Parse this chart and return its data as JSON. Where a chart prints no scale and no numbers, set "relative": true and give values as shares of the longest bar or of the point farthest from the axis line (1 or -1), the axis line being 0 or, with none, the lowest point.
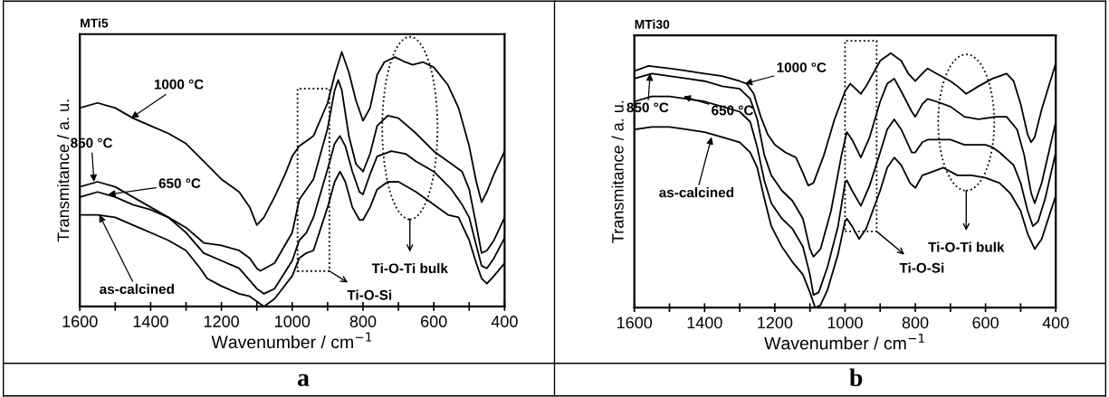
{
  "chart_data": [
    {
      "type": "line",
      "title": "MTi5",
      "xlabel": "Wavenumber / cm$^{−1}$",
      "ylabel": "Transmitance / a. u.",
      "relative": true,
      "xlim": [
        1600,
        400
      ],
      "xticks": [
        1600,
        {
          "value": 1500,
          "label": null
        },
        1400,
        {
          "value": 1300,
          "label": null
        },
        1200,
        {
          "value": 1100,
          "label": null
        },
        1000,
        {
          "value": 900,
          "label": null
        },
        800,
        {
          "value": 700,
          "label": null
        },
        600,
        {
          "value": 500,
          "label": null
        },
        400
      ],
      "series": [
        {
          "color": "#000000",
          "x": [
            1600,
            1550,
            1500,
            1450,
            1400,
            1350,
            1300,
            1250,
            1200,
            1150,
            1120,
            1100,
            1080,
            1050,
            1020,
            1000,
            980,
            960,
            940,
            900,
            880,
            860,
            840,
            820,
            800,
            780,
            760,
            740,
            710,
            680,
            660,
            630,
            600,
            560,
            530,
            500,
            480,
            465,
            450,
            430,
            400
          ],
          "values": [
            0.78,
            0.8,
            0.78,
            0.74,
            0.71,
            0.68,
            0.64,
            0.57,
            0.5,
            0.45,
            0.39,
            0.32,
            0.35,
            0.43,
            0.52,
            0.59,
            0.63,
            0.65,
            0.67,
            0.8,
            0.91,
            1.0,
            0.92,
            0.81,
            0.73,
            0.78,
            0.91,
            0.96,
            0.98,
            0.96,
            0.95,
            0.96,
            0.94,
            0.87,
            0.78,
            0.63,
            0.49,
            0.41,
            0.45,
            0.52,
            0.61
          ]
        },
        {
          "color": "#000000",
          "x": [
            1600,
            1550,
            1500,
            1450,
            1400,
            1350,
            1300,
            1250,
            1200,
            1150,
            1120,
            1100,
            1090,
            1050,
            1000,
            980,
            960,
            940,
            900,
            880,
            870,
            860,
            840,
            820,
            800,
            780,
            760,
            730,
            700,
            650,
            600,
            550,
            520,
            500,
            480,
            465,
            450,
            430,
            400
          ],
          "values": [
            0.47,
            0.49,
            0.47,
            0.43,
            0.39,
            0.35,
            0.31,
            0.25,
            0.24,
            0.22,
            0.19,
            0.15,
            0.14,
            0.17,
            0.29,
            0.42,
            0.46,
            0.5,
            0.7,
            0.85,
            0.89,
            0.85,
            0.67,
            0.56,
            0.53,
            0.6,
            0.71,
            0.75,
            0.74,
            0.68,
            0.61,
            0.56,
            0.53,
            0.46,
            0.32,
            0.21,
            0.22,
            0.26,
            0.35
          ]
        },
        {
          "color": "#000000",
          "x": [
            1600,
            1550,
            1500,
            1450,
            1400,
            1350,
            1300,
            1250,
            1200,
            1150,
            1100,
            1080,
            1050,
            1000,
            980,
            960,
            940,
            900,
            880,
            865,
            850,
            830,
            810,
            800,
            780,
            760,
            720,
            680,
            650,
            600,
            550,
            520,
            500,
            480,
            465,
            450,
            430,
            400
          ],
          "values": [
            0.43,
            0.45,
            0.43,
            0.4,
            0.38,
            0.35,
            0.29,
            0.21,
            0.18,
            0.15,
            0.07,
            0.05,
            0.07,
            0.18,
            0.26,
            0.29,
            0.35,
            0.54,
            0.64,
            0.67,
            0.63,
            0.53,
            0.45,
            0.44,
            0.52,
            0.59,
            0.61,
            0.6,
            0.57,
            0.53,
            0.46,
            0.4,
            0.35,
            0.24,
            0.16,
            0.15,
            0.19,
            0.27
          ]
        },
        {
          "color": "#000000",
          "x": [
            1600,
            1550,
            1500,
            1450,
            1400,
            1350,
            1300,
            1260,
            1240,
            1200,
            1150,
            1120,
            1080,
            1050,
            1000,
            980,
            960,
            940,
            900,
            880,
            865,
            850,
            830,
            810,
            800,
            780,
            760,
            730,
            700,
            650,
            600,
            560,
            530,
            500,
            480,
            465,
            450,
            430,
            400
          ],
          "values": [
            0.36,
            0.36,
            0.35,
            0.32,
            0.29,
            0.26,
            0.22,
            0.15,
            0.11,
            0.08,
            0.05,
            0.04,
            0.0,
            0.03,
            0.12,
            0.19,
            0.21,
            0.22,
            0.39,
            0.49,
            0.53,
            0.49,
            0.39,
            0.34,
            0.34,
            0.39,
            0.46,
            0.49,
            0.49,
            0.45,
            0.4,
            0.36,
            0.35,
            0.26,
            0.17,
            0.11,
            0.09,
            0.12,
            0.17
          ]
        }
      ],
      "annotations": [
        {
          "text": "1000 °C",
          "x": 1455,
          "y": 0.74
        },
        {
          "text": "850 °C",
          "x": 1560,
          "y": 0.49
        },
        {
          "text": "650 °C",
          "x": 1520,
          "y": 0.44
        },
        {
          "text": "as-calcined",
          "x": 1545,
          "y": 0.36
        },
        "Ti-O-Si",
        "Ti-O-Ti bulk",
        "a"
      ]
    },
    {
      "type": "line",
      "title": "MTi30",
      "xlabel": "Wavenumber / cm$^{−1}$",
      "ylabel": "Transmitance / a. u.",
      "relative": true,
      "xlim": [
        1600,
        400
      ],
      "xticks": [
        1600,
        {
          "value": 1500,
          "label": null
        },
        1400,
        {
          "value": 1300,
          "label": null
        },
        1200,
        {
          "value": 1100,
          "label": null
        },
        1000,
        {
          "value": 900,
          "label": null
        },
        800,
        {
          "value": 700,
          "label": null
        },
        600,
        {
          "value": 500,
          "label": null
        },
        400
      ],
      "series": [
        {
          "color": "#000000",
          "x": [
            1600,
            1560,
            1500,
            1450,
            1400,
            1350,
            1300,
            1280,
            1260,
            1240,
            1220,
            1200,
            1170,
            1140,
            1120,
            1105,
            1090,
            1060,
            1030,
            1000,
            985,
            970,
            955,
            940,
            920,
            900,
            870,
            840,
            820,
            800,
            780,
            765,
            740,
            700,
            680,
            655,
            620,
            580,
            540,
            520,
            500,
            480,
            470,
            460,
            440,
            400
          ],
          "values": [
            0.93,
            0.95,
            0.94,
            0.93,
            0.92,
            0.91,
            0.89,
            0.88,
            0.84,
            0.75,
            0.68,
            0.64,
            0.61,
            0.59,
            0.53,
            0.48,
            0.49,
            0.6,
            0.74,
            0.85,
            0.88,
            0.86,
            0.84,
            0.87,
            0.92,
            0.97,
            1.0,
            0.97,
            0.92,
            0.89,
            0.92,
            0.94,
            0.92,
            0.89,
            0.87,
            0.84,
            0.87,
            0.9,
            0.92,
            0.89,
            0.8,
            0.68,
            0.65,
            0.67,
            0.78,
            0.96
          ]
        },
        {
          "color": "#000000",
          "x": [
            1600,
            1550,
            1500,
            1450,
            1400,
            1350,
            1300,
            1270,
            1250,
            1230,
            1210,
            1180,
            1150,
            1120,
            1100,
            1090,
            1070,
            1040,
            1010,
            995,
            980,
            955,
            930,
            900,
            880,
            860,
            840,
            810,
            800,
            780,
            765,
            740,
            700,
            660,
            620,
            570,
            540,
            510,
            490,
            470,
            460,
            440,
            400
          ],
          "values": [
            0.9,
            0.92,
            0.91,
            0.9,
            0.89,
            0.87,
            0.86,
            0.82,
            0.74,
            0.6,
            0.52,
            0.46,
            0.42,
            0.35,
            0.23,
            0.2,
            0.23,
            0.38,
            0.6,
            0.69,
            0.66,
            0.59,
            0.67,
            0.81,
            0.88,
            0.9,
            0.85,
            0.77,
            0.75,
            0.8,
            0.82,
            0.81,
            0.79,
            0.75,
            0.74,
            0.75,
            0.75,
            0.7,
            0.6,
            0.45,
            0.41,
            0.49,
            0.73
          ]
        },
        {
          "color": "#000000",
          "x": [
            1600,
            1550,
            1500,
            1450,
            1400,
            1350,
            1300,
            1270,
            1250,
            1230,
            1210,
            1180,
            1150,
            1120,
            1100,
            1090,
            1075,
            1050,
            1020,
            1000,
            995,
            980,
            955,
            930,
            900,
            880,
            860,
            840,
            810,
            800,
            780,
            765,
            740,
            700,
            660,
            600,
            580,
            560,
            520,
            500,
            480,
            465,
            450,
            430,
            400
          ],
          "values": [
            0.81,
            0.83,
            0.83,
            0.82,
            0.81,
            0.79,
            0.77,
            0.73,
            0.63,
            0.5,
            0.41,
            0.35,
            0.31,
            0.24,
            0.13,
            0.05,
            0.06,
            0.16,
            0.32,
            0.49,
            0.5,
            0.46,
            0.4,
            0.48,
            0.61,
            0.7,
            0.74,
            0.7,
            0.61,
            0.61,
            0.65,
            0.66,
            0.66,
            0.66,
            0.64,
            0.64,
            0.63,
            0.61,
            0.56,
            0.49,
            0.38,
            0.32,
            0.34,
            0.43,
            0.61
          ]
        },
        {
          "color": "#000000",
          "x": [
            1600,
            1550,
            1500,
            1450,
            1400,
            1350,
            1300,
            1270,
            1250,
            1230,
            1210,
            1180,
            1150,
            1120,
            1100,
            1085,
            1070,
            1050,
            1020,
            1000,
            995,
            980,
            960,
            940,
            900,
            880,
            860,
            840,
            815,
            800,
            780,
            760,
            720,
            680,
            640,
            600,
            560,
            530,
            500,
            480,
            460,
            440,
            400
          ],
          "values": [
            0.7,
            0.71,
            0.71,
            0.7,
            0.69,
            0.67,
            0.65,
            0.61,
            0.55,
            0.43,
            0.32,
            0.24,
            0.18,
            0.13,
            0.06,
            0.0,
            0.01,
            0.07,
            0.21,
            0.34,
            0.35,
            0.32,
            0.27,
            0.31,
            0.46,
            0.55,
            0.59,
            0.56,
            0.49,
            0.47,
            0.52,
            0.53,
            0.55,
            0.52,
            0.52,
            0.51,
            0.49,
            0.45,
            0.38,
            0.29,
            0.23,
            0.27,
            0.44
          ]
        }
      ],
      "annotations": [
        {
          "text": "1000 °C",
          "x": 1285,
          "y": 0.88
        },
        {
          "text": "850 °C",
          "x": 1555,
          "y": 0.92
        },
        {
          "text": "650 °C",
          "x": 1460,
          "y": 0.83
        },
        {
          "text": "as-calcined",
          "x": 1380,
          "y": 0.67
        },
        "Ti-O-Si",
        "Ti-O-Ti bulk",
        "b"
      ]
    }
  ]
}
